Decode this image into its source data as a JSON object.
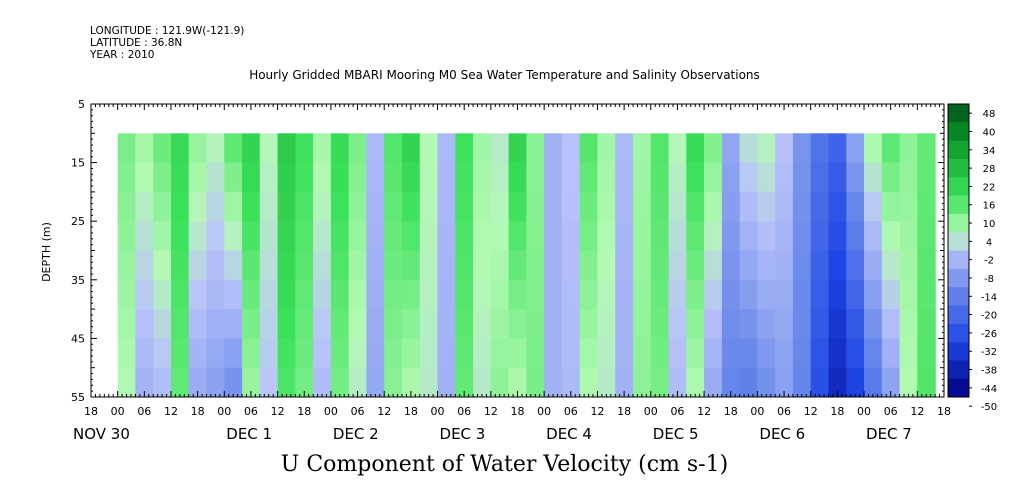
{
  "meta": {
    "longitude": "LONGITUDE : 121.9W(-121.9)",
    "latitude": "LATITUDE : 36.8N",
    "year": "YEAR : 2010"
  },
  "chart_data": {
    "type": "heatmap",
    "title": "Hourly Gridded MBARI Mooring M0 Sea Water Temperature and Salinity Observations",
    "xlabel": "U Component of Water Velocity (cm s-1)",
    "ylabel": "DEPTH (m)",
    "ylim": [
      5,
      55
    ],
    "y_inverted": true,
    "y_ticks": [
      5,
      15,
      25,
      35,
      45,
      55
    ],
    "data_depth_range": [
      10,
      55
    ],
    "x_range_hours": [
      -6,
      186
    ],
    "x_hour_ticks": [
      {
        "h": -6,
        "label": "18"
      },
      {
        "h": 0,
        "label": "00"
      },
      {
        "h": 6,
        "label": "06"
      },
      {
        "h": 12,
        "label": "12"
      },
      {
        "h": 18,
        "label": "18"
      },
      {
        "h": 24,
        "label": "00"
      },
      {
        "h": 30,
        "label": "06"
      },
      {
        "h": 36,
        "label": "12"
      },
      {
        "h": 42,
        "label": "18"
      },
      {
        "h": 48,
        "label": "00"
      },
      {
        "h": 54,
        "label": "06"
      },
      {
        "h": 60,
        "label": "12"
      },
      {
        "h": 66,
        "label": "18"
      },
      {
        "h": 72,
        "label": "00"
      },
      {
        "h": 78,
        "label": "06"
      },
      {
        "h": 84,
        "label": "12"
      },
      {
        "h": 90,
        "label": "18"
      },
      {
        "h": 96,
        "label": "00"
      },
      {
        "h": 102,
        "label": "06"
      },
      {
        "h": 108,
        "label": "12"
      },
      {
        "h": 114,
        "label": "18"
      },
      {
        "h": 120,
        "label": "00"
      },
      {
        "h": 126,
        "label": "06"
      },
      {
        "h": 132,
        "label": "12"
      },
      {
        "h": 138,
        "label": "18"
      },
      {
        "h": 144,
        "label": "00"
      },
      {
        "h": 150,
        "label": "06"
      },
      {
        "h": 156,
        "label": "12"
      },
      {
        "h": 162,
        "label": "18"
      },
      {
        "h": 168,
        "label": "00"
      },
      {
        "h": 174,
        "label": "06"
      },
      {
        "h": 180,
        "label": "12"
      },
      {
        "h": 186,
        "label": "18"
      }
    ],
    "date_labels": [
      {
        "h": -6,
        "text": "NOV 30"
      },
      {
        "h": 24,
        "text": "DEC  1"
      },
      {
        "h": 48,
        "text": "DEC  2"
      },
      {
        "h": 72,
        "text": "DEC  3"
      },
      {
        "h": 96,
        "text": "DEC  4"
      },
      {
        "h": 120,
        "text": "DEC  5"
      },
      {
        "h": 144,
        "text": "DEC  6"
      },
      {
        "h": 168,
        "text": "DEC  7"
      }
    ],
    "colorbar": {
      "labels": [
        "48",
        "40",
        "34",
        "28",
        "22",
        "16",
        "10",
        "4",
        "-2",
        "-8",
        "-14",
        "-20",
        "-26",
        "-32",
        "-38",
        "-44",
        "-50"
      ],
      "range": [
        -50,
        48
      ]
    },
    "u_velocity_profile": {
      "note_hours": [
        0,
        4,
        8,
        12,
        16,
        20,
        24,
        28,
        32,
        36,
        40,
        44,
        48,
        52,
        56,
        60,
        64,
        68,
        72,
        76,
        80,
        84,
        88,
        92,
        96,
        100,
        104,
        108,
        112,
        116,
        120,
        124,
        128,
        132,
        136,
        140,
        144,
        148,
        152,
        156,
        160,
        164,
        168,
        172,
        176,
        180,
        184
      ],
      "surface": [
        10,
        6,
        12,
        18,
        8,
        4,
        14,
        20,
        4,
        22,
        16,
        6,
        18,
        10,
        -4,
        14,
        20,
        4,
        -4,
        16,
        6,
        2,
        20,
        8,
        -6,
        -2,
        14,
        6,
        -4,
        6,
        14,
        4,
        18,
        10,
        -8,
        2,
        4,
        -2,
        -12,
        -20,
        -24,
        -8,
        6,
        14,
        8,
        12,
        10
      ],
      "bottom": [
        4,
        -6,
        -4,
        12,
        -8,
        -10,
        -14,
        6,
        -2,
        14,
        10,
        -4,
        10,
        2,
        -8,
        8,
        4,
        2,
        -6,
        12,
        2,
        8,
        4,
        10,
        -6,
        -4,
        4,
        2,
        -6,
        8,
        10,
        -4,
        4,
        -8,
        -16,
        -18,
        -14,
        -10,
        -16,
        -30,
        -40,
        -34,
        -20,
        -10,
        4,
        14,
        18
      ]
    }
  }
}
